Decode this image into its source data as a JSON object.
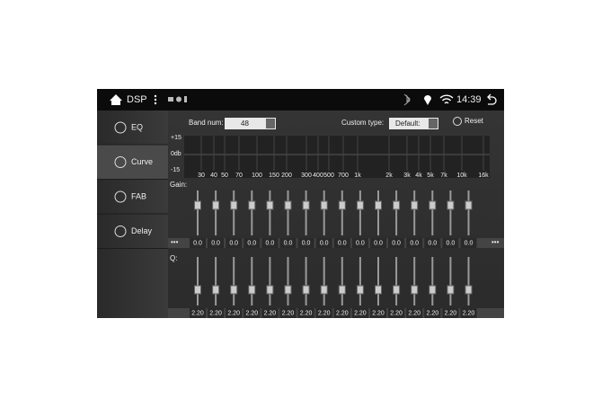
{
  "header": {
    "title": "DSP",
    "time": "14:39"
  },
  "sidebar": {
    "items": [
      "EQ",
      "Curve",
      "FAB",
      "Delay"
    ]
  },
  "controls": {
    "band_num_label": "Band num:",
    "band_num": "48",
    "custom_type_label": "Custom type:",
    "custom_type": "Default:",
    "reset": "Reset"
  },
  "curve": {
    "y_labels": [
      "+15",
      "0db",
      "-15"
    ],
    "x_labels": [
      "30",
      "40",
      "50",
      "70",
      "100",
      "150",
      "200",
      "300",
      "400",
      "500",
      "700",
      "1k",
      "2k",
      "3k",
      "4k",
      "5k",
      "7k",
      "10k",
      "16k"
    ]
  },
  "gain": {
    "label": "Gain:",
    "values": [
      "0.0",
      "0.0",
      "0.0",
      "0.0",
      "0.0",
      "0.0",
      "0.0",
      "0.0",
      "0.0",
      "0.0",
      "0.0",
      "0.0",
      "0.0",
      "0.0",
      "0.0",
      "0.0"
    ]
  },
  "q": {
    "label": "Q:",
    "values": [
      "2.20",
      "2.20",
      "2.20",
      "2.20",
      "2.20",
      "2.20",
      "2.20",
      "2.20",
      "2.20",
      "2.20",
      "2.20",
      "2.20",
      "2.20",
      "2.20",
      "2.20",
      "2.20"
    ]
  }
}
